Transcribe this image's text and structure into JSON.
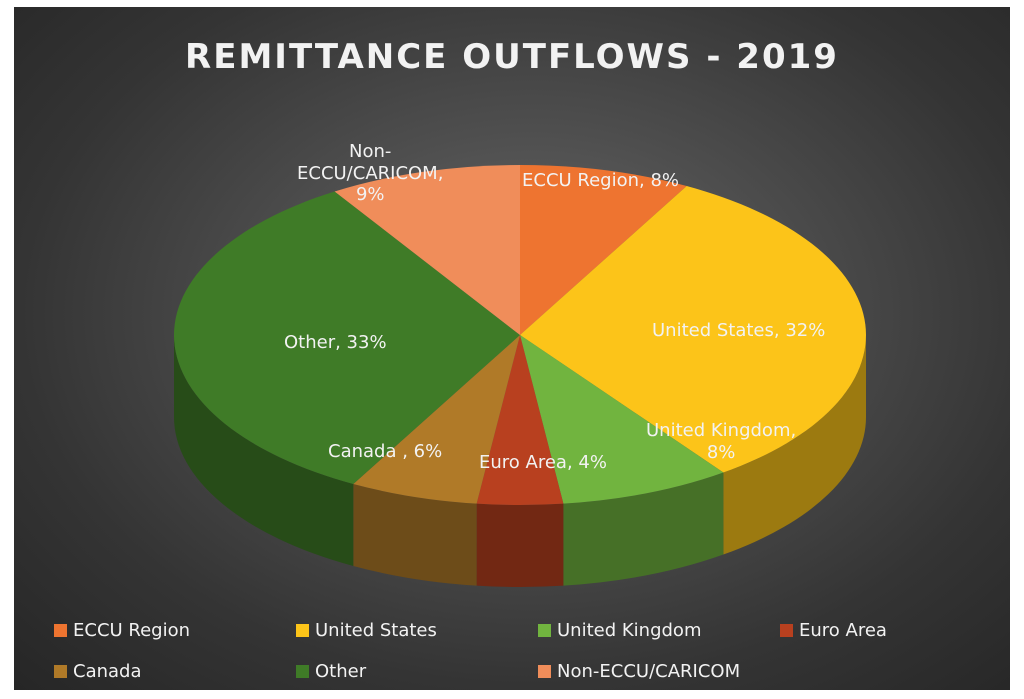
{
  "chart_data": {
    "type": "pie",
    "title": "REMITTANCE OUTFLOWS - 2019",
    "categories": [
      "ECCU Region",
      "United States",
      "United Kingdom",
      "Euro Area",
      "Canada",
      "Other",
      "Non-ECCU/CARICOM"
    ],
    "values": [
      8,
      32,
      8,
      4,
      6,
      33,
      9
    ],
    "unit": "%",
    "data_labels": [
      "ECCU Region, 8%",
      "United States, 32%",
      "United Kingdom, 8%",
      "Euro Area, 4%",
      "Canada , 6%",
      "Other, 33%",
      "Non-ECCU/CARICOM, 9%"
    ],
    "colors": [
      "#ee7430",
      "#fcc419",
      "#71b43f",
      "#b8401f",
      "#b07a28",
      "#3f7b27",
      "#f08d5a"
    ],
    "legend_position": "bottom"
  },
  "legend": {
    "items": [
      "ECCU Region",
      "United States",
      "United Kingdom",
      "Euro Area",
      "Canada",
      "Other",
      "Non-ECCU/CARICOM"
    ]
  }
}
